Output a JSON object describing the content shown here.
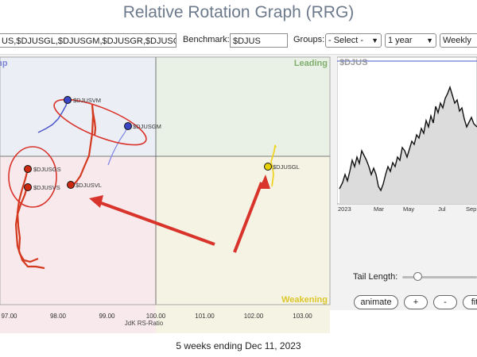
{
  "title": "Relative Rotation Graph (RRG)",
  "symbols_input": "US,$DJUSGL,$DJUSGM,$DJUSGR,$DJUSGS",
  "benchmark_label": "Benchmark:",
  "benchmark_value": "$DJUS",
  "groups_label": "Groups:",
  "groups_value": "- Select -",
  "period_value": "1 year",
  "frequency_value": "Weekly",
  "quadrants": {
    "leading": "Leading",
    "weakening": "Weakening",
    "improving": "Imp"
  },
  "x_axis": {
    "label": "JdK RS-Ratio",
    "ticks": [
      "97.00",
      "98.00",
      "99.00",
      "100.00",
      "101.00",
      "102.00",
      "103.00"
    ],
    "tick_values": [
      97,
      98,
      99,
      100,
      101,
      102,
      103
    ]
  },
  "securities": [
    {
      "symbol": "$DJUSVM",
      "color": "#3b46c4",
      "tail_color": "#4a55c9"
    },
    {
      "symbol": "$DJUSGM",
      "color": "#3b46c4",
      "tail_color": "#6d78e0"
    },
    {
      "symbol": "$DJUSGS",
      "color": "#cc2a10",
      "tail_color": "#d43a1f"
    },
    {
      "symbol": "$DJUSVS",
      "color": "#cc2a10",
      "tail_color": "#d43a1f"
    },
    {
      "symbol": "$DJUSVL",
      "color": "#cc2a10",
      "tail_color": "#d43a1f"
    },
    {
      "symbol": "$DJUSGL",
      "color": "#e7d200",
      "tail_color": "#f0dc2a"
    }
  ],
  "price_chart": {
    "symbol": "$DJUS",
    "months": [
      "2023",
      "Mar",
      "May",
      "Jul",
      "Sep"
    ]
  },
  "tail_length_label": "Tail Length:",
  "tail_length_fraction": 0.2,
  "buttons": {
    "animate": "animate",
    "plus": "+",
    "minus": "-",
    "fit": "fit"
  },
  "footer": "5 weeks ending Dec 11, 2023",
  "colors": {
    "annotation": "#d9342b",
    "leading_bg": "#e9f1e7",
    "weakening_bg": "#f4f3e4",
    "lagging_bg": "#f7e9ec",
    "improving_bg": "#eceef6"
  }
}
